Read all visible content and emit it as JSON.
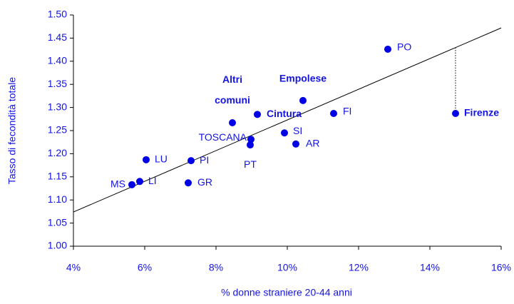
{
  "chart_data": {
    "type": "scatter",
    "xlabel": "% donne straniere 20-44 anni",
    "ylabel": "Tasso di fecondità totale",
    "labels": [
      "MS",
      "LI",
      "LU",
      "GR",
      "PI",
      "TOSCANA",
      "PT",
      "Altri comuni",
      "Cintura",
      "SI",
      "AR",
      "Empolese",
      "FI",
      "PO",
      "Firenze"
    ],
    "bold_labels": [
      false,
      false,
      false,
      false,
      false,
      false,
      false,
      true,
      true,
      false,
      false,
      true,
      false,
      false,
      true
    ],
    "x": [
      5.64,
      5.86,
      6.04,
      7.22,
      7.3,
      8.98,
      8.96,
      8.46,
      9.16,
      9.92,
      10.24,
      10.44,
      11.3,
      12.82,
      14.72
    ],
    "y": [
      1.133,
      1.14,
      1.187,
      1.137,
      1.185,
      1.231,
      1.219,
      1.267,
      1.285,
      1.245,
      1.221,
      1.315,
      1.287,
      1.426,
      1.287
    ],
    "color": "#0000e6",
    "trendline": {
      "x": [
        4,
        16
      ],
      "y": [
        1.074,
        1.472
      ]
    },
    "xlim": [
      4,
      16
    ],
    "ylim": [
      1.0,
      1.5
    ],
    "xticks": [
      {
        "value": 4,
        "label": "4%"
      },
      {
        "value": 6,
        "label": "6%"
      },
      {
        "value": 8,
        "label": "8%"
      },
      {
        "value": 10,
        "label": "10%"
      },
      {
        "value": 12,
        "label": "12%"
      },
      {
        "value": 14,
        "label": "14%"
      },
      {
        "value": 16,
        "label": "16%"
      }
    ],
    "yticks": [
      {
        "value": 1.0,
        "label": "1.00"
      },
      1.05,
      {
        "value": 1.1,
        "label": "1.10"
      },
      1.15,
      {
        "value": 1.2,
        "label": "1.20"
      },
      1.25,
      {
        "value": 1.3,
        "label": "1.30"
      },
      1.35,
      {
        "value": 1.4,
        "label": "1.40"
      },
      1.45,
      {
        "value": 1.5,
        "label": "1.50"
      }
    ]
  }
}
